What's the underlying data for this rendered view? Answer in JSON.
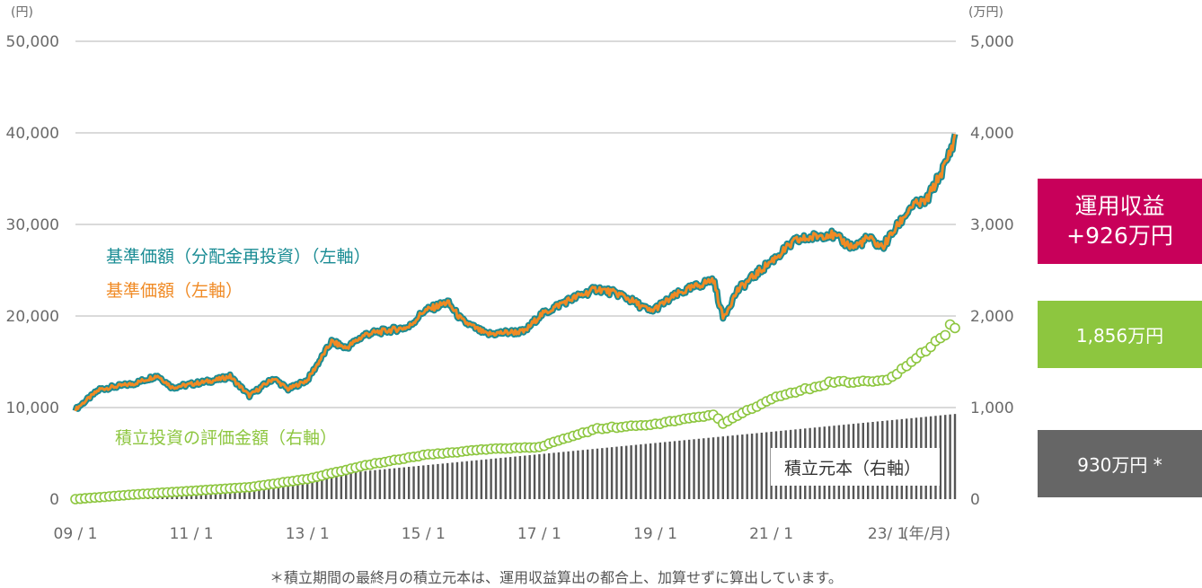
{
  "axis_units": {
    "left": "(円)",
    "right": "(万円)",
    "x": "(年/月)"
  },
  "left_ticks": [
    "50,000",
    "40,000",
    "30,000",
    "20,000",
    "10,000",
    "0"
  ],
  "right_ticks": [
    "5,000",
    "4,000",
    "3,000",
    "2,000",
    "1,000",
    "0"
  ],
  "x_ticks": [
    "09 / 1",
    "11 / 1",
    "13 / 1",
    "15 / 1",
    "17 / 1",
    "19 / 1",
    "21 / 1",
    "23/ 1"
  ],
  "legend": {
    "reinvest": "基準価額（分配金再投資）（左軸）",
    "nav": "基準価額（左軸）",
    "valuation": "積立投資の評価金額（右軸）",
    "principal": "積立元本（右軸）"
  },
  "summary": {
    "profit_title": "運用収益",
    "profit_value": "+926万円",
    "valuation_value": "1,856万円",
    "principal_value": "930万円 *"
  },
  "footnote": "＊積立期間の最終月の積立元本は、運用収益算出の都合上、加算せずに算出しています。",
  "colors": {
    "reinvest": "#1a8c94",
    "nav": "#f08a24",
    "valuation": "#8dc63f",
    "principal": "#555555",
    "profit_box": "#c8005a",
    "valuation_box": "#8dc63f",
    "principal_box": "#666666",
    "grid": "#b5b5b5"
  },
  "chart_data": {
    "type": "line",
    "x_range": [
      "2009-01",
      "2024-03"
    ],
    "left_ylim": [
      0,
      50000
    ],
    "right_ylim": [
      0,
      5000
    ],
    "nav_keypoints": [
      [
        "2009-01",
        9800
      ],
      [
        "2009-06",
        12000
      ],
      [
        "2010-01",
        12600
      ],
      [
        "2010-06",
        13500
      ],
      [
        "2010-09",
        12200
      ],
      [
        "2011-06",
        13000
      ],
      [
        "2011-09",
        13400
      ],
      [
        "2012-01",
        11300
      ],
      [
        "2012-06",
        13200
      ],
      [
        "2012-09",
        12000
      ],
      [
        "2013-01",
        13000
      ],
      [
        "2013-06",
        17200
      ],
      [
        "2013-09",
        16500
      ],
      [
        "2014-01",
        18000
      ],
      [
        "2014-10",
        18800
      ],
      [
        "2015-01",
        20500
      ],
      [
        "2015-06",
        21500
      ],
      [
        "2015-09",
        19500
      ],
      [
        "2016-02",
        18000
      ],
      [
        "2016-06",
        18200
      ],
      [
        "2016-10",
        18300
      ],
      [
        "2017-01",
        20000
      ],
      [
        "2017-06",
        21500
      ],
      [
        "2018-01",
        23000
      ],
      [
        "2018-06",
        22300
      ],
      [
        "2018-12",
        20500
      ],
      [
        "2019-06",
        22500
      ],
      [
        "2020-01",
        24000
      ],
      [
        "2020-03",
        19800
      ],
      [
        "2020-06",
        22800
      ],
      [
        "2021-01",
        26000
      ],
      [
        "2021-06",
        28200
      ],
      [
        "2022-01",
        29000
      ],
      [
        "2022-06",
        27500
      ],
      [
        "2022-09",
        28500
      ],
      [
        "2022-12",
        27500
      ],
      [
        "2023-06",
        32000
      ],
      [
        "2023-09",
        32500
      ],
      [
        "2024-01",
        36500
      ],
      [
        "2024-03",
        39500
      ]
    ],
    "valuation_keypoints": [
      [
        "2009-01",
        0
      ],
      [
        "2010-01",
        50
      ],
      [
        "2011-01",
        90
      ],
      [
        "2012-01",
        130
      ],
      [
        "2013-01",
        220
      ],
      [
        "2014-01",
        370
      ],
      [
        "2015-01",
        480
      ],
      [
        "2016-01",
        540
      ],
      [
        "2017-01",
        570
      ],
      [
        "2018-01",
        770
      ],
      [
        "2019-01",
        820
      ],
      [
        "2020-01",
        920
      ],
      [
        "2020-03",
        830
      ],
      [
        "2021-01",
        1100
      ],
      [
        "2022-01",
        1270
      ],
      [
        "2023-01",
        1300
      ],
      [
        "2023-06",
        1500
      ],
      [
        "2024-01",
        1800
      ],
      [
        "2024-02",
        1920
      ],
      [
        "2024-03",
        1856
      ]
    ],
    "principal": {
      "start": "2009-01",
      "end": "2024-03",
      "start_value": 0,
      "end_value": 930,
      "step": "monthly"
    },
    "grid": true,
    "legend_placement": "inline"
  }
}
